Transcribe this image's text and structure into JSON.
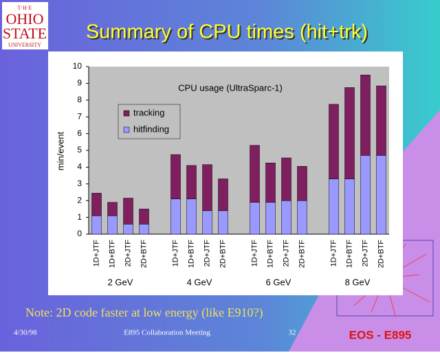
{
  "slide": {
    "logo": [
      "T·H·E",
      "OHIO",
      "STATE",
      "UNIVERSITY"
    ],
    "title": "Summary of CPU times (hit+trk)",
    "note": "Note: 2D code faster at low energy (like E910?)",
    "footer": {
      "date": "4/30/98",
      "meeting": "E895 Collaboration Meeting",
      "page": "32",
      "experiment": "EOS - E895"
    }
  },
  "chart_data": {
    "type": "stacked_bar",
    "title": "CPU usage (UltraSparc-1)",
    "y_label": "min/event",
    "categories": [
      "1D+JTF",
      "1D+BTF",
      "2D+JTF",
      "2D+BTF",
      null,
      "1D+JTF",
      "1D+BTF",
      "2D+JTF",
      "2D+BTF",
      null,
      "1D+JTF",
      "1D+BTF",
      "2D+JTF",
      "2D+BTF",
      null,
      "1D+JTF",
      "1D+BTF",
      "2D+JTF",
      "2D+BTF"
    ],
    "category_groups": [
      "2 GeV",
      "4 GeV",
      "6 GeV",
      "8 GeV"
    ],
    "series": [
      {
        "name": "hitfinding",
        "color": "#9999ff",
        "values": [
          1.1,
          1.1,
          0.6,
          0.6,
          null,
          2.1,
          2.1,
          1.4,
          1.4,
          null,
          1.9,
          1.9,
          2.0,
          2.0,
          null,
          3.3,
          3.3,
          4.7,
          4.7
        ]
      },
      {
        "name": "tracking",
        "color": "#7f1f5f",
        "values": [
          1.35,
          0.8,
          1.55,
          0.9,
          null,
          2.65,
          2.0,
          2.75,
          1.9,
          null,
          3.4,
          2.35,
          2.55,
          2.05,
          null,
          4.45,
          5.45,
          4.8,
          4.15
        ]
      }
    ],
    "ylim": [
      0,
      10
    ],
    "yticks": [
      0,
      1,
      2,
      3,
      4,
      5,
      6,
      7,
      8,
      9,
      10
    ],
    "grid": false,
    "legend": "top-left"
  }
}
